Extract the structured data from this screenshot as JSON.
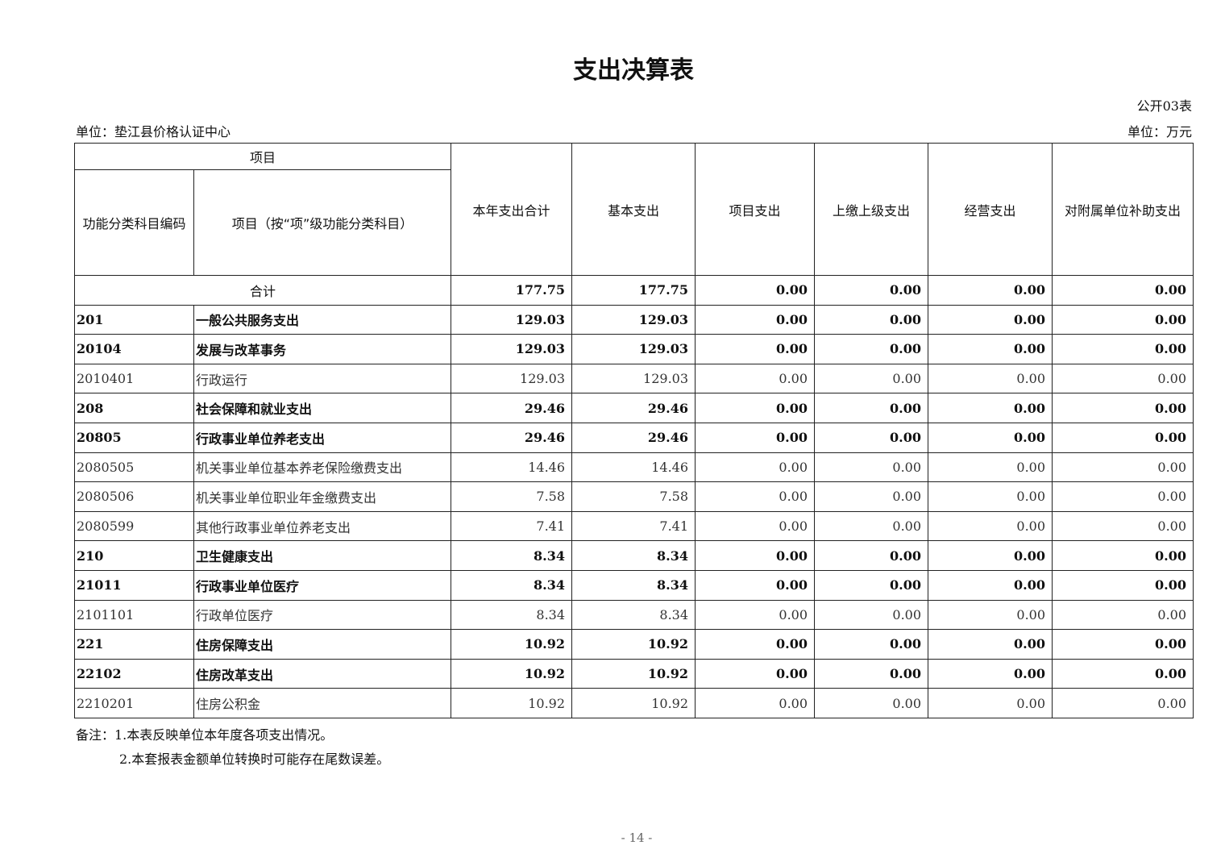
{
  "title": "支出决算表",
  "table_code": "公开03表",
  "unit_left": "单位：垫江县价格认证中心",
  "unit_right": "单位：万元",
  "headers": {
    "item_group": "项目",
    "code": "功能分类科目编码",
    "item": "项目（按“项”级功能分类科目）",
    "total": "本年支出合计",
    "basic": "基本支出",
    "project": "项目支出",
    "upper": "上缴上级支出",
    "business": "经营支出",
    "subsidy": "对附属单位补助支出"
  },
  "total_row": {
    "label": "合计",
    "values": [
      "177.75",
      "177.75",
      "0.00",
      "0.00",
      "0.00",
      "0.00"
    ]
  },
  "rows": [
    {
      "code": "201",
      "name": "一般公共服务支出",
      "bold": true,
      "values": [
        "129.03",
        "129.03",
        "0.00",
        "0.00",
        "0.00",
        "0.00"
      ]
    },
    {
      "code": "20104",
      "name": "发展与改革事务",
      "bold": true,
      "values": [
        "129.03",
        "129.03",
        "0.00",
        "0.00",
        "0.00",
        "0.00"
      ]
    },
    {
      "code": "2010401",
      "name": "行政运行",
      "bold": false,
      "values": [
        "129.03",
        "129.03",
        "0.00",
        "0.00",
        "0.00",
        "0.00"
      ]
    },
    {
      "code": "208",
      "name": "社会保障和就业支出",
      "bold": true,
      "values": [
        "29.46",
        "29.46",
        "0.00",
        "0.00",
        "0.00",
        "0.00"
      ]
    },
    {
      "code": "20805",
      "name": "行政事业单位养老支出",
      "bold": true,
      "values": [
        "29.46",
        "29.46",
        "0.00",
        "0.00",
        "0.00",
        "0.00"
      ]
    },
    {
      "code": "2080505",
      "name": "机关事业单位基本养老保险缴费支出",
      "bold": false,
      "values": [
        "14.46",
        "14.46",
        "0.00",
        "0.00",
        "0.00",
        "0.00"
      ]
    },
    {
      "code": "2080506",
      "name": "机关事业单位职业年金缴费支出",
      "bold": false,
      "values": [
        "7.58",
        "7.58",
        "0.00",
        "0.00",
        "0.00",
        "0.00"
      ]
    },
    {
      "code": "2080599",
      "name": "其他行政事业单位养老支出",
      "bold": false,
      "values": [
        "7.41",
        "7.41",
        "0.00",
        "0.00",
        "0.00",
        "0.00"
      ]
    },
    {
      "code": "210",
      "name": "卫生健康支出",
      "bold": true,
      "values": [
        "8.34",
        "8.34",
        "0.00",
        "0.00",
        "0.00",
        "0.00"
      ]
    },
    {
      "code": "21011",
      "name": "行政事业单位医疗",
      "bold": true,
      "values": [
        "8.34",
        "8.34",
        "0.00",
        "0.00",
        "0.00",
        "0.00"
      ]
    },
    {
      "code": "2101101",
      "name": "行政单位医疗",
      "bold": false,
      "values": [
        "8.34",
        "8.34",
        "0.00",
        "0.00",
        "0.00",
        "0.00"
      ]
    },
    {
      "code": "221",
      "name": "住房保障支出",
      "bold": true,
      "values": [
        "10.92",
        "10.92",
        "0.00",
        "0.00",
        "0.00",
        "0.00"
      ]
    },
    {
      "code": "22102",
      "name": "住房改革支出",
      "bold": true,
      "values": [
        "10.92",
        "10.92",
        "0.00",
        "0.00",
        "0.00",
        "0.00"
      ]
    },
    {
      "code": "2210201",
      "name": "住房公积金",
      "bold": false,
      "values": [
        "10.92",
        "10.92",
        "0.00",
        "0.00",
        "0.00",
        "0.00"
      ]
    }
  ],
  "notes": [
    "备注：1.本表反映单位本年度各项支出情况。",
    "2.本套报表金额单位转换时可能存在尾数误差。"
  ],
  "page_number": "- 14 -"
}
